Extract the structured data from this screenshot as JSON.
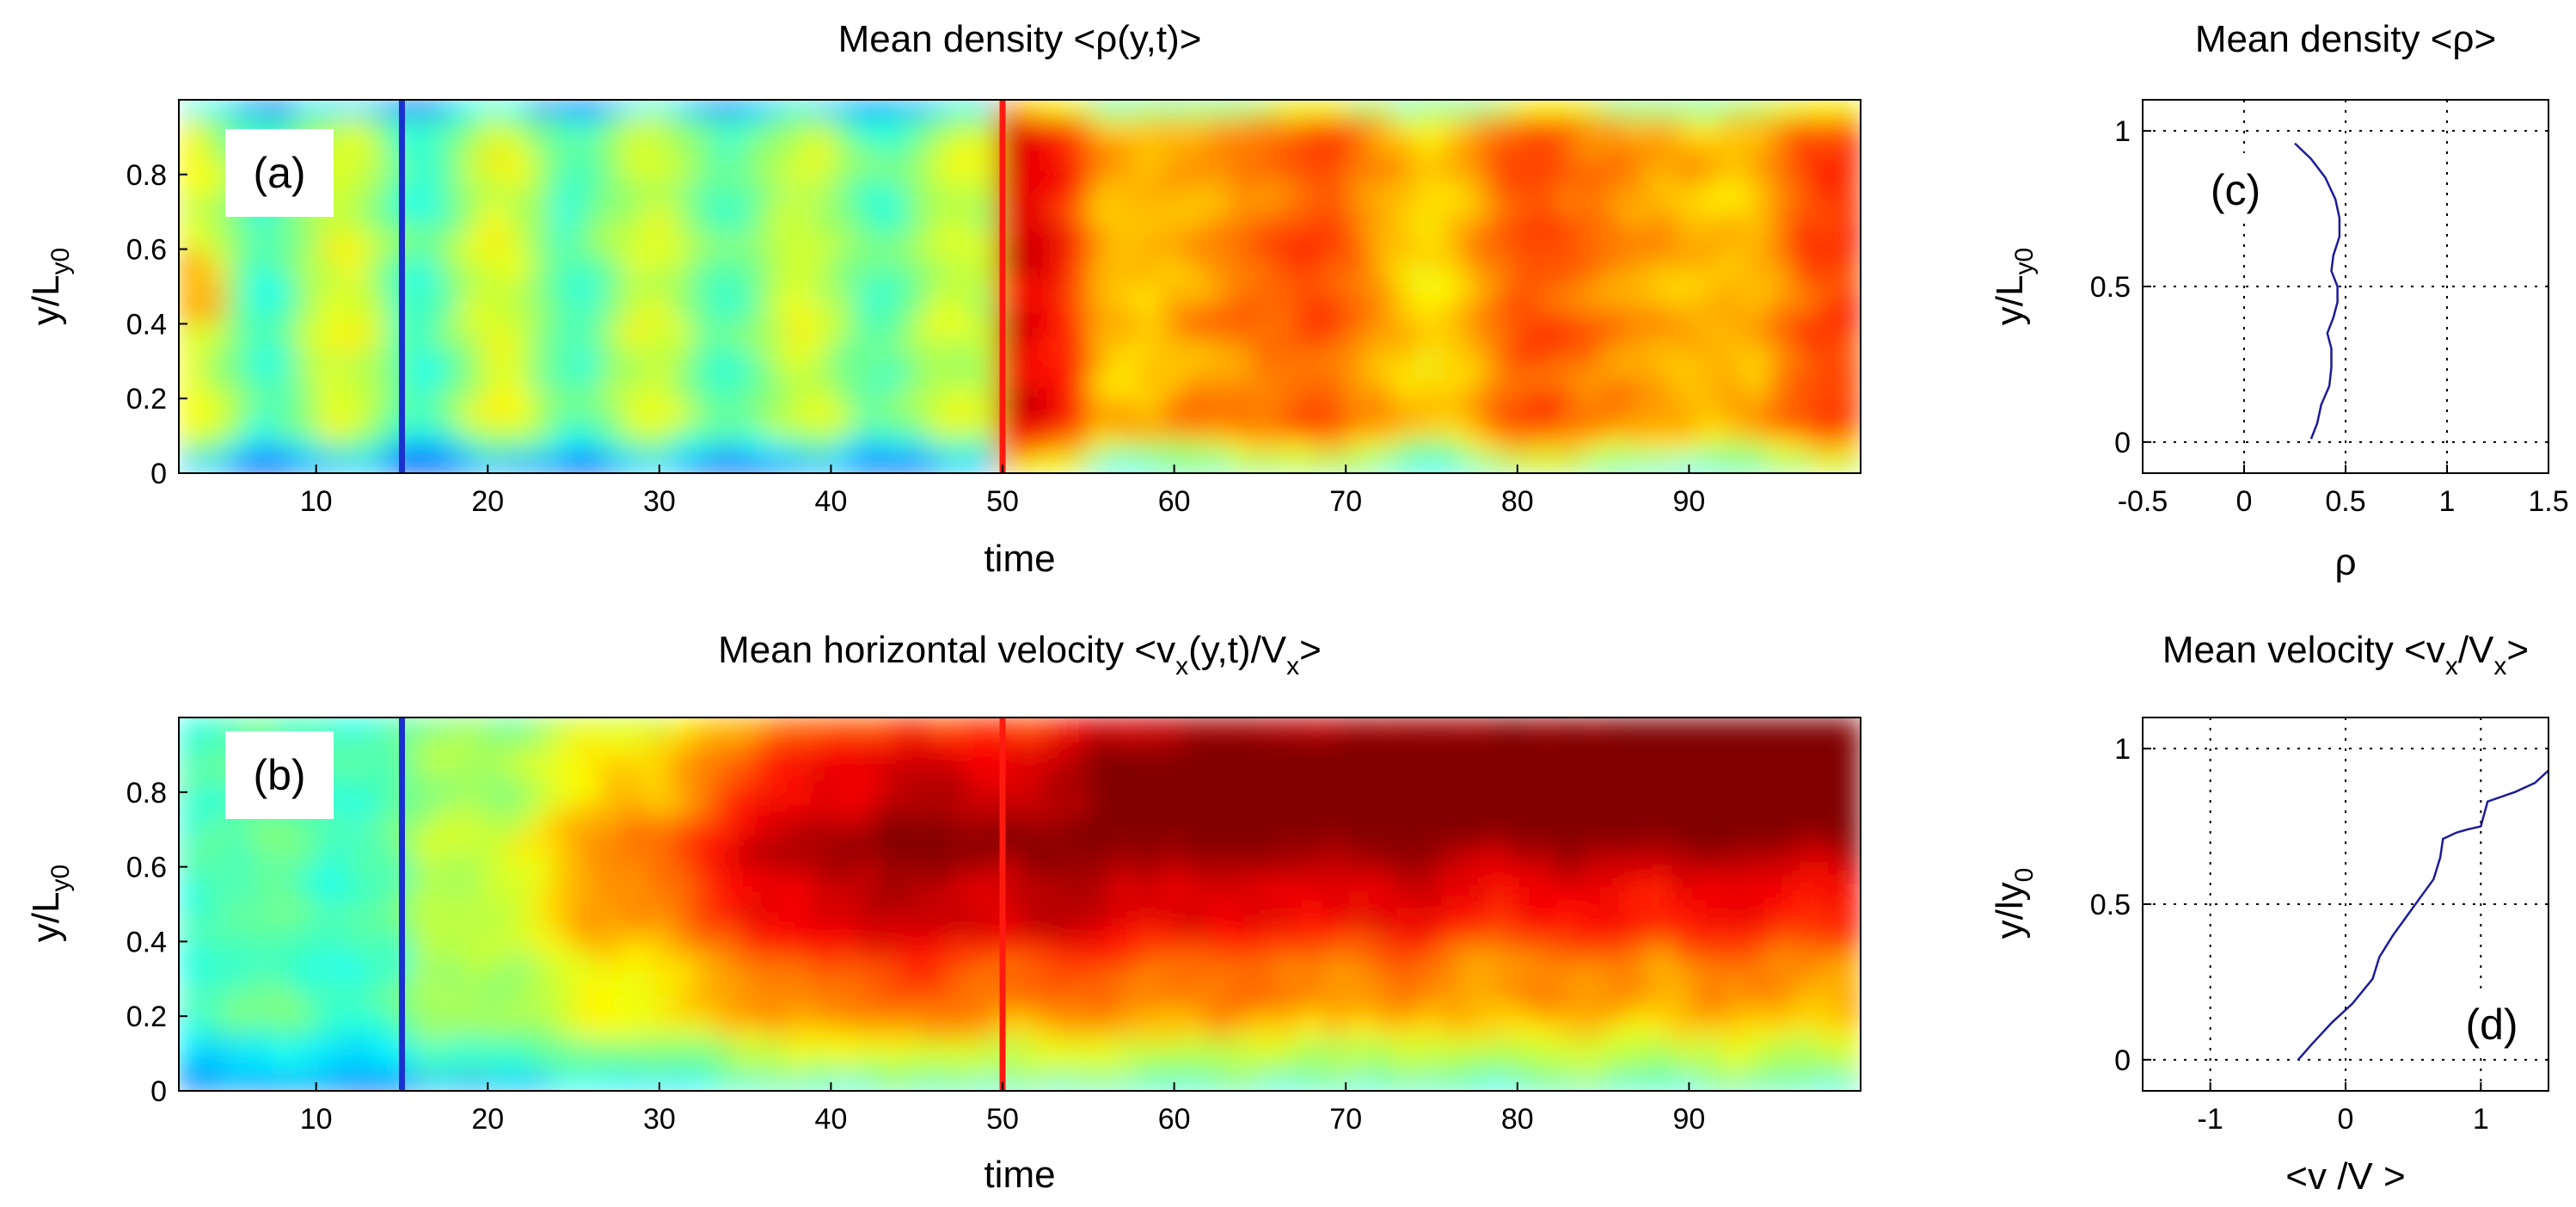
{
  "chart_data": [
    {
      "id": "a",
      "type": "heatmap",
      "title": "Mean density <ρ(y,t)>",
      "xlabel": "time",
      "ylabel": "y/L",
      "ylabel_sub": "y0",
      "panel_label": "(a)",
      "xlim": [
        2,
        100
      ],
      "ylim": [
        0,
        1
      ],
      "x_ticks": [
        10,
        20,
        30,
        40,
        50,
        60,
        70,
        80,
        90
      ],
      "y_ticks": [
        0,
        0.2,
        0.4,
        0.6,
        0.8
      ],
      "y_tick_labels": [
        "0",
        "0.2",
        "0.4",
        "0.6",
        "0.8"
      ],
      "x_tick_labels": [
        "10",
        "20",
        "30",
        "40",
        "50",
        "60",
        "70",
        "80",
        "90"
      ],
      "colormap": "jet",
      "field_description": "low-moderate density (green/yellow) before t=50; high density (orange/red) after t=50",
      "markers": [
        {
          "time": 15,
          "color": "#1a2fd0"
        },
        {
          "time": 50,
          "color": "#ff1a10"
        }
      ]
    },
    {
      "id": "b",
      "type": "heatmap",
      "title": "Mean horizontal velocity <v",
      "title_sub": "x",
      "title_rest": "(y,t)/V",
      "title_sub2": "x",
      "title_end": ">",
      "xlabel": "time",
      "ylabel": "y/L",
      "ylabel_sub": "y0",
      "panel_label": "(b)",
      "xlim": [
        2,
        100
      ],
      "ylim": [
        0,
        1
      ],
      "x_ticks": [
        10,
        20,
        30,
        40,
        50,
        60,
        70,
        80,
        90
      ],
      "y_ticks": [
        0,
        0.2,
        0.4,
        0.6,
        0.8
      ],
      "y_tick_labels": [
        "0",
        "0.2",
        "0.4",
        "0.6",
        "0.8"
      ],
      "x_tick_labels": [
        "10",
        "20",
        "30",
        "40",
        "50",
        "60",
        "70",
        "80",
        "90"
      ],
      "colormap": "jet",
      "field_description": "velocity near zero (green) before t=15, growing to high (red/dark red) at later times in upper region",
      "markers": [
        {
          "time": 15,
          "color": "#1a2fd0"
        },
        {
          "time": 50,
          "color": "#ff1a10"
        }
      ]
    },
    {
      "id": "c",
      "type": "line",
      "title": "Mean density <ρ>",
      "xlabel": "ρ",
      "ylabel": "y/L",
      "ylabel_sub": "y0",
      "panel_label": "(c)",
      "xlim": [
        -0.5,
        1.5
      ],
      "ylim": [
        -0.1,
        1.1
      ],
      "x_ticks": [
        -0.5,
        0,
        0.5,
        1,
        1.5
      ],
      "x_tick_labels": [
        "-0.5",
        "0",
        "0.5",
        "1",
        "1.5"
      ],
      "y_ticks": [
        0,
        0.5,
        1
      ],
      "y_tick_labels": [
        "0",
        "0.5",
        "1"
      ],
      "grid": true,
      "series": [
        {
          "name": "mean density profile",
          "x": [
            0.33,
            0.36,
            0.38,
            0.42,
            0.43,
            0.43,
            0.41,
            0.44,
            0.46,
            0.46,
            0.43,
            0.44,
            0.47,
            0.47,
            0.45,
            0.4,
            0.33,
            0.25
          ],
          "y": [
            0.01,
            0.06,
            0.12,
            0.18,
            0.24,
            0.3,
            0.35,
            0.4,
            0.45,
            0.5,
            0.55,
            0.6,
            0.66,
            0.72,
            0.78,
            0.85,
            0.91,
            0.96
          ]
        }
      ]
    },
    {
      "id": "d",
      "type": "line",
      "title": "Mean velocity <v",
      "title_sub": "x",
      "title_rest": "/V",
      "title_sub2": "x",
      "title_end": ">",
      "xlabel": "<v /V >",
      "ylabel": "y/ly",
      "ylabel_sub": "0",
      "panel_label": "(d)",
      "xlim": [
        -1.5,
        1.5
      ],
      "ylim": [
        -0.1,
        1.1
      ],
      "x_ticks": [
        -1,
        0,
        1
      ],
      "x_tick_labels": [
        "-1",
        "0",
        "1"
      ],
      "y_ticks": [
        0,
        0.5,
        1
      ],
      "y_tick_labels": [
        "0",
        "0.5",
        "1"
      ],
      "grid": true,
      "series": [
        {
          "name": "mean velocity profile",
          "x": [
            -0.35,
            -0.25,
            -0.1,
            0.05,
            0.2,
            0.25,
            0.35,
            0.45,
            0.55,
            0.65,
            0.7,
            0.72,
            0.82,
            0.9,
            1.0,
            1.05,
            1.25,
            1.4,
            1.5
          ],
          "y": [
            0.0,
            0.05,
            0.12,
            0.18,
            0.26,
            0.33,
            0.4,
            0.46,
            0.52,
            0.58,
            0.65,
            0.71,
            0.73,
            0.74,
            0.75,
            0.83,
            0.86,
            0.89,
            0.93
          ]
        }
      ]
    }
  ]
}
